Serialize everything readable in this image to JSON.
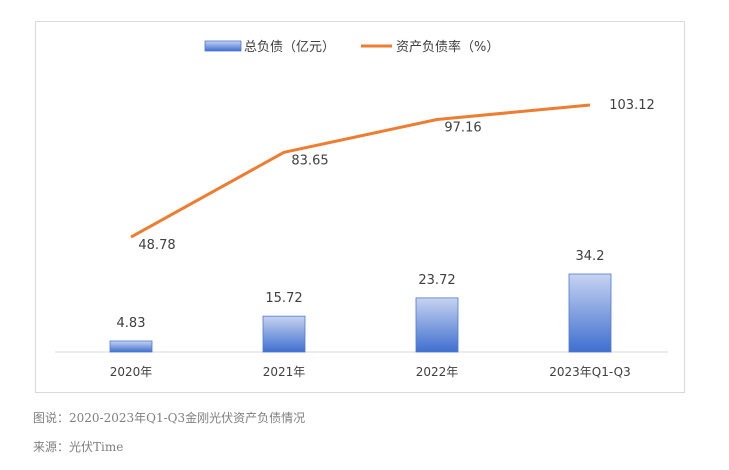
{
  "chart_data": {
    "type": "bar+line",
    "categories": [
      "2020年",
      "2021年",
      "2022年",
      "2023年Q1-Q3"
    ],
    "series": [
      {
        "name": "总负债（亿元）",
        "type": "bar",
        "values": [
          4.83,
          15.72,
          23.72,
          34.2
        ],
        "labels": [
          "4.83",
          "15.72",
          "23.72",
          "34.2"
        ],
        "color": "#4472c4"
      },
      {
        "name": "资产负债率（%）",
        "type": "line",
        "values": [
          48.78,
          83.65,
          97.16,
          103.12
        ],
        "labels": [
          "48.78",
          "83.65",
          "97.16",
          "103.12"
        ],
        "color": "#ed7d31"
      }
    ],
    "legend_position": "top-center",
    "grid": false
  },
  "caption": {
    "figure": "图说：2020-2023年Q1-Q3金刚光伏资产负债情况",
    "source": "来源：光伏Time"
  }
}
